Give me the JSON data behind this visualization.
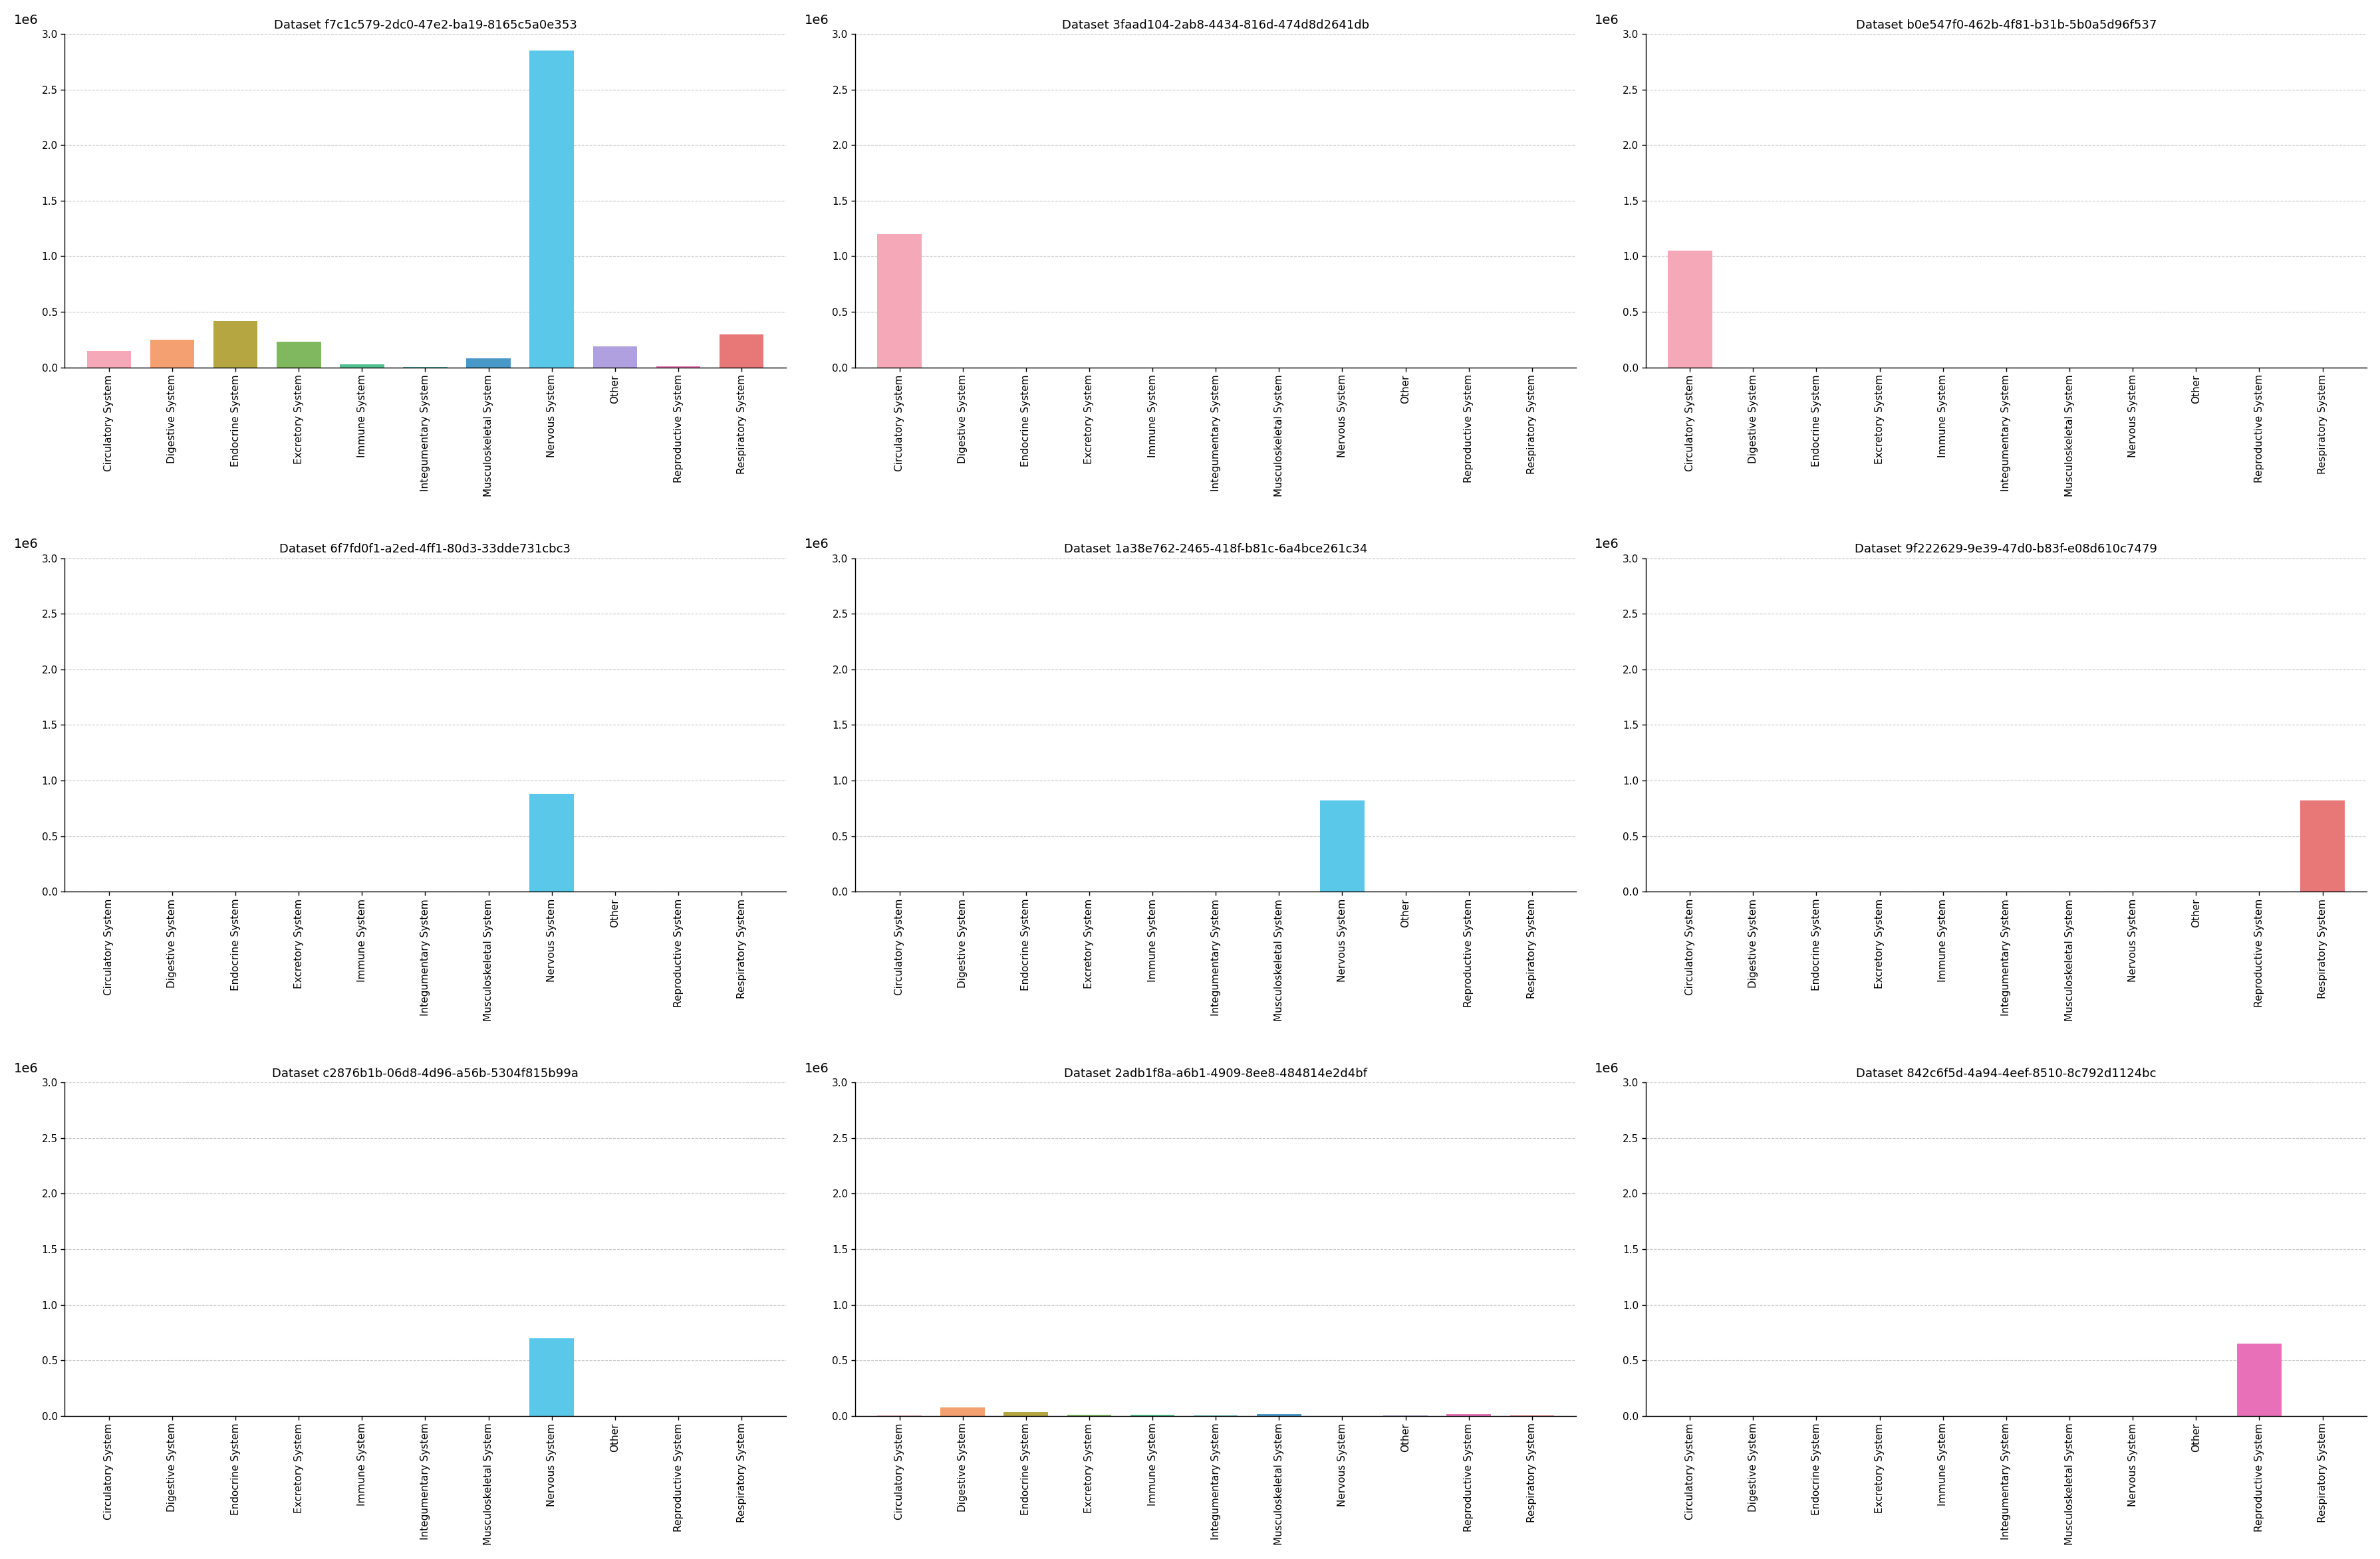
{
  "categories": [
    "Circulatory System",
    "Digestive System",
    "Endocrine System",
    "Excretory System",
    "Immune System",
    "Integumentary System",
    "Musculoskeletal System",
    "Nervous System",
    "Other",
    "Reproductive System",
    "Respiratory System"
  ],
  "bar_colors": [
    "#f4a8b8",
    "#f4a070",
    "#b5a642",
    "#80b860",
    "#50c090",
    "#50b8b8",
    "#4898c8",
    "#5ac8e8",
    "#b0a0e0",
    "#e870b8",
    "#e87878"
  ],
  "datasets": [
    {
      "title": "Dataset f7c1c579-2dc0-47e2-ba19-8165c5a0e353",
      "values": [
        150000,
        250000,
        420000,
        230000,
        30000,
        5000,
        80000,
        2850000,
        190000,
        10000,
        300000
      ]
    },
    {
      "title": "Dataset 3faad104-2ab8-4434-816d-474d8d2641db",
      "values": [
        1200000,
        0,
        0,
        0,
        0,
        0,
        0,
        0,
        0,
        0,
        0
      ]
    },
    {
      "title": "Dataset b0e547f0-462b-4f81-b31b-5b0a5d96f537",
      "values": [
        1050000,
        0,
        0,
        0,
        0,
        0,
        0,
        0,
        0,
        0,
        0
      ]
    },
    {
      "title": "Dataset 6f7fd0f1-a2ed-4ff1-80d3-33dde731cbc3",
      "values": [
        0,
        0,
        0,
        0,
        0,
        0,
        0,
        880000,
        0,
        0,
        0
      ]
    },
    {
      "title": "Dataset 1a38e762-2465-418f-b81c-6a4bce261c34",
      "values": [
        0,
        0,
        0,
        0,
        0,
        0,
        0,
        820000,
        0,
        0,
        0
      ]
    },
    {
      "title": "Dataset 9f222629-9e39-47d0-b83f-e08d610c7479",
      "values": [
        0,
        0,
        0,
        0,
        0,
        0,
        0,
        0,
        0,
        0,
        820000
      ]
    },
    {
      "title": "Dataset c2876b1b-06d8-4d96-a56b-5304f815b99a",
      "values": [
        0,
        0,
        0,
        0,
        0,
        0,
        0,
        700000,
        0,
        0,
        0
      ]
    },
    {
      "title": "Dataset 2adb1f8a-a6b1-4909-8ee8-484814e2d4bf",
      "values": [
        5000,
        75000,
        35000,
        10000,
        12000,
        8000,
        20000,
        0,
        5000,
        15000,
        5000
      ]
    },
    {
      "title": "Dataset 842c6f5d-4a94-4eef-8510-8c792d1124bc",
      "values": [
        0,
        0,
        0,
        0,
        0,
        0,
        0,
        0,
        0,
        650000,
        0
      ]
    }
  ],
  "ylim": 3000000,
  "ytick_step": 500000,
  "background_color": "#ffffff",
  "grid_color": "#c8c8c8",
  "title_fontsize": 13,
  "tick_label_fontsize": 11,
  "axis_label_size": 14
}
